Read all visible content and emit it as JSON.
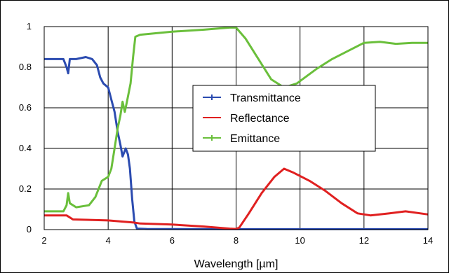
{
  "chart_data": {
    "type": "line",
    "title": "",
    "xlabel": "Wavelength [µm]",
    "ylabel": "",
    "xlim": [
      2,
      14
    ],
    "ylim": [
      0,
      1
    ],
    "x_ticks": [
      2,
      4,
      6,
      8,
      10,
      12,
      14
    ],
    "y_ticks": [
      0,
      0.2,
      0.4,
      0.6,
      0.8,
      1
    ],
    "x_tick_labels": [
      "2",
      "4",
      "6",
      "8",
      "10",
      "12",
      "14"
    ],
    "y_tick_labels": [
      "0",
      "0.2",
      "0.4",
      "0.6",
      "0.8",
      "1"
    ],
    "grid": true,
    "legend_position": "center-right",
    "series": [
      {
        "name": "Transmittance",
        "color": "#2b4bb0",
        "marker": "plus",
        "points": [
          [
            2.0,
            0.84
          ],
          [
            2.3,
            0.84
          ],
          [
            2.6,
            0.84
          ],
          [
            2.7,
            0.8
          ],
          [
            2.75,
            0.77
          ],
          [
            2.8,
            0.84
          ],
          [
            3.0,
            0.84
          ],
          [
            3.3,
            0.85
          ],
          [
            3.5,
            0.84
          ],
          [
            3.65,
            0.81
          ],
          [
            3.75,
            0.75
          ],
          [
            3.85,
            0.72
          ],
          [
            4.0,
            0.7
          ],
          [
            4.1,
            0.64
          ],
          [
            4.2,
            0.58
          ],
          [
            4.3,
            0.48
          ],
          [
            4.38,
            0.42
          ],
          [
            4.45,
            0.36
          ],
          [
            4.55,
            0.4
          ],
          [
            4.62,
            0.37
          ],
          [
            4.68,
            0.3
          ],
          [
            4.75,
            0.15
          ],
          [
            4.82,
            0.04
          ],
          [
            4.9,
            0.005
          ],
          [
            5.2,
            0.003
          ],
          [
            8.0,
            0.002
          ],
          [
            14.0,
            0.002
          ]
        ]
      },
      {
        "name": "Reflectance",
        "color": "#e02020",
        "marker": "dash",
        "points": [
          [
            2.0,
            0.07
          ],
          [
            2.7,
            0.07
          ],
          [
            2.9,
            0.05
          ],
          [
            4.0,
            0.045
          ],
          [
            4.8,
            0.035
          ],
          [
            5.0,
            0.03
          ],
          [
            6.0,
            0.025
          ],
          [
            7.0,
            0.015
          ],
          [
            7.8,
            0.005
          ],
          [
            8.0,
            0.003
          ],
          [
            8.1,
            0.01
          ],
          [
            8.4,
            0.08
          ],
          [
            8.8,
            0.18
          ],
          [
            9.2,
            0.26
          ],
          [
            9.5,
            0.3
          ],
          [
            9.8,
            0.28
          ],
          [
            10.3,
            0.24
          ],
          [
            10.8,
            0.19
          ],
          [
            11.3,
            0.13
          ],
          [
            11.8,
            0.08
          ],
          [
            12.2,
            0.07
          ],
          [
            12.8,
            0.08
          ],
          [
            13.3,
            0.09
          ],
          [
            14.0,
            0.075
          ]
        ]
      },
      {
        "name": "Emittance",
        "color": "#6abf3b",
        "marker": "plus",
        "points": [
          [
            2.0,
            0.09
          ],
          [
            2.6,
            0.09
          ],
          [
            2.7,
            0.12
          ],
          [
            2.75,
            0.18
          ],
          [
            2.8,
            0.13
          ],
          [
            3.0,
            0.11
          ],
          [
            3.4,
            0.12
          ],
          [
            3.6,
            0.16
          ],
          [
            3.8,
            0.24
          ],
          [
            4.0,
            0.26
          ],
          [
            4.1,
            0.3
          ],
          [
            4.2,
            0.4
          ],
          [
            4.3,
            0.5
          ],
          [
            4.38,
            0.56
          ],
          [
            4.45,
            0.63
          ],
          [
            4.52,
            0.58
          ],
          [
            4.6,
            0.64
          ],
          [
            4.7,
            0.72
          ],
          [
            4.78,
            0.85
          ],
          [
            4.85,
            0.95
          ],
          [
            5.0,
            0.96
          ],
          [
            6.0,
            0.975
          ],
          [
            7.0,
            0.985
          ],
          [
            7.8,
            0.995
          ],
          [
            8.0,
            0.995
          ],
          [
            8.3,
            0.94
          ],
          [
            8.7,
            0.84
          ],
          [
            9.1,
            0.74
          ],
          [
            9.5,
            0.7
          ],
          [
            9.9,
            0.72
          ],
          [
            10.5,
            0.79
          ],
          [
            11.0,
            0.84
          ],
          [
            11.5,
            0.88
          ],
          [
            12.0,
            0.92
          ],
          [
            12.5,
            0.925
          ],
          [
            13.0,
            0.915
          ],
          [
            13.5,
            0.92
          ],
          [
            14.0,
            0.92
          ]
        ]
      }
    ]
  }
}
